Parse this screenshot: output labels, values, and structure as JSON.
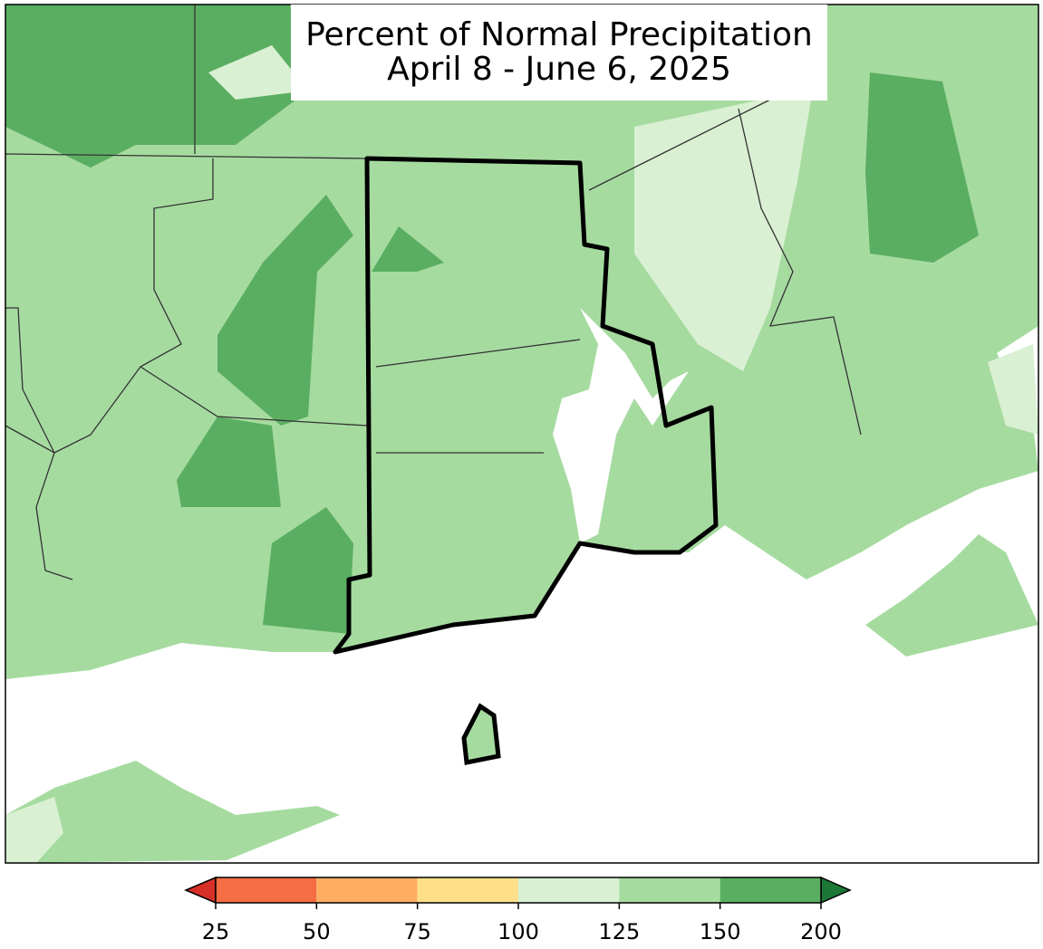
{
  "title": [
    "Percent of Normal Precipitation",
    "April 8 - June 6, 2025"
  ],
  "colorbar": {
    "ticks": [
      25,
      50,
      75,
      100,
      125,
      150,
      200
    ],
    "colors": [
      "#f46d43",
      "#fdae61",
      "#fee08b",
      "#d9f0d3",
      "#a6dba0",
      "#5aae61"
    ],
    "under_color": "#d73027",
    "over_color": "#1b7837"
  }
}
